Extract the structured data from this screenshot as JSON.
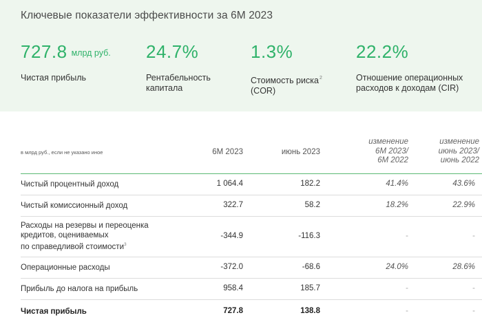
{
  "kpi_panel": {
    "title": "Ключевые показатели эффективности за 6М 2023",
    "items": [
      {
        "value": "727.8",
        "unit": "млрд руб.",
        "label_1": "Чистая прибыль",
        "label_2": "",
        "sup": ""
      },
      {
        "value": "24.7%",
        "unit": "",
        "label_1": "Рентабельность",
        "label_2": "капитала",
        "sup": ""
      },
      {
        "value": "1.3%",
        "unit": "",
        "label_1": "Стоимость риска",
        "label_2": "(COR)",
        "sup": "2"
      },
      {
        "value": "22.2%",
        "unit": "",
        "label_1": "Отношение операционных",
        "label_2": "расходов к доходам (CIR)",
        "sup": ""
      }
    ],
    "colors": {
      "accent": "#2fb26a",
      "panel_bg": "#eef6ee"
    }
  },
  "table": {
    "caption": "в млрд руб., если не указано иное",
    "columns": {
      "c1": "6М 2023",
      "c2": "июнь 2023",
      "c3": [
        "изменение",
        "6М 2023/",
        "6М 2022"
      ],
      "c4": [
        "изменение",
        "июнь 2023/",
        "июнь 2022"
      ]
    },
    "rows": [
      {
        "label": "Чистый процентный доход",
        "v1": "1 064.4",
        "v2": "182.2",
        "v3": "41.4%",
        "v4": "43.6%"
      },
      {
        "label": "Чистый комиссионный доход",
        "v1": "322.7",
        "v2": "58.2",
        "v3": "18.2%",
        "v4": "22.9%"
      },
      {
        "label_lines": [
          "Расходы на резервы и переоценка",
          "кредитов, оцениваемых",
          "по справедливой стоимости"
        ],
        "sup": "3",
        "v1": "-344.9",
        "v2": "-116.3",
        "v3": "-",
        "v4": "-"
      },
      {
        "label": "Операционные расходы",
        "v1": "-372.0",
        "v2": "-68.6",
        "v3": "24.0%",
        "v4": "28.6%"
      },
      {
        "label": "Прибыль до налога на прибыль",
        "v1": "958.4",
        "v2": "185.7",
        "v3": "-",
        "v4": "-"
      },
      {
        "label": "Чистая прибыль",
        "v1": "727.8",
        "v2": "138.8",
        "v3": "-",
        "v4": "-"
      }
    ]
  }
}
